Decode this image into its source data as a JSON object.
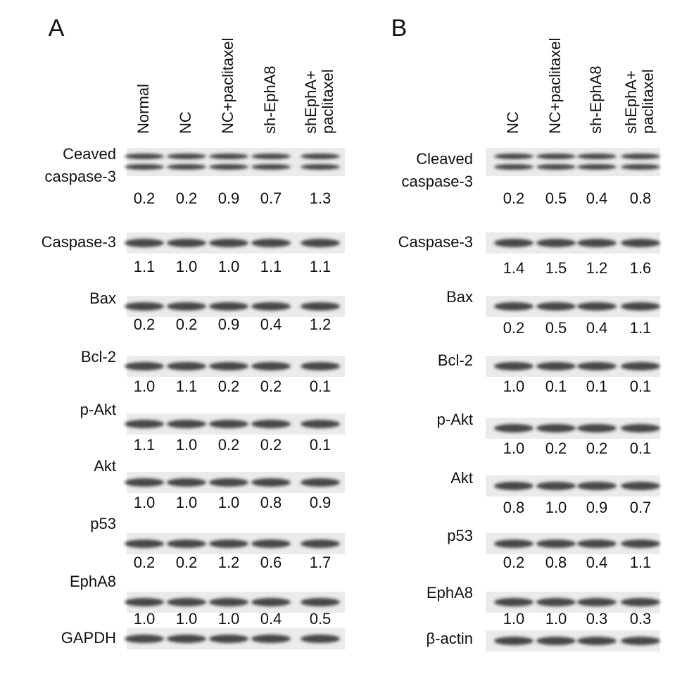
{
  "panels": [
    {
      "letter": "A",
      "columns": [
        [
          "Normal"
        ],
        [
          "NC"
        ],
        [
          "NC+paclitaxel"
        ],
        [
          "sh-EphA8"
        ],
        [
          "shEphA+",
          "paclitaxel"
        ]
      ],
      "rows": [
        {
          "label": [
            "Ceaved",
            "caspase-3"
          ],
          "values": [
            "0.2",
            "0.2",
            "0.9",
            "0.7",
            "1.3"
          ]
        },
        {
          "label": [
            "Caspase-3"
          ],
          "values": [
            "1.1",
            "1.0",
            "1.0",
            "1.1",
            "1.1"
          ]
        },
        {
          "label": [
            "Bax"
          ],
          "values": [
            "0.2",
            "0.2",
            "0.9",
            "0.4",
            "1.2"
          ]
        },
        {
          "label": [
            "Bcl-2"
          ],
          "values": [
            "1.0",
            "1.1",
            "0.2",
            "0.2",
            "0.1"
          ]
        },
        {
          "label": [
            "p-Akt"
          ],
          "values": [
            "1.1",
            "1.0",
            "0.2",
            "0.2",
            "0.1"
          ]
        },
        {
          "label": [
            "Akt"
          ],
          "values": [
            "1.0",
            "1.0",
            "1.0",
            "0.8",
            "0.9"
          ]
        },
        {
          "label": [
            "p53"
          ],
          "values": [
            "0.2",
            "0.2",
            "1.2",
            "0.6",
            "1.7"
          ]
        },
        {
          "label": [
            "EphA8"
          ],
          "values": [
            "1.0",
            "1.0",
            "1.0",
            "0.4",
            "0.5"
          ]
        },
        {
          "label": [
            "GAPDH"
          ]
        }
      ]
    },
    {
      "letter": "B",
      "columns": [
        [
          "NC"
        ],
        [
          "NC+paclitaxel"
        ],
        [
          "sh-EphA8"
        ],
        [
          "shEphA+",
          "paclitaxel"
        ]
      ],
      "rows": [
        {
          "label": [
            "Cleaved",
            "caspase-3"
          ],
          "values": [
            "0.2",
            "0.5",
            "0.4",
            "0.8"
          ]
        },
        {
          "label": [
            "Caspase-3"
          ],
          "values": [
            "1.4",
            "1.5",
            "1.2",
            "1.6"
          ]
        },
        {
          "label": [
            "Bax"
          ],
          "values": [
            "0.2",
            "0.5",
            "0.4",
            "1.1"
          ]
        },
        {
          "label": [
            "Bcl-2"
          ],
          "values": [
            "1.0",
            "0.1",
            "0.1",
            "0.1"
          ]
        },
        {
          "label": [
            "p-Akt"
          ],
          "values": [
            "1.0",
            "0.2",
            "0.2",
            "0.1"
          ]
        },
        {
          "label": [
            "Akt"
          ],
          "values": [
            "0.8",
            "1.0",
            "0.9",
            "0.7"
          ]
        },
        {
          "label": [
            "p53"
          ],
          "values": [
            "0.2",
            "0.8",
            "0.4",
            "1.1"
          ]
        },
        {
          "label": [
            "EphA8"
          ],
          "values": [
            "1.0",
            "1.0",
            "0.3",
            "0.3"
          ]
        },
        {
          "label": [
            "β-actin"
          ]
        }
      ]
    }
  ]
}
